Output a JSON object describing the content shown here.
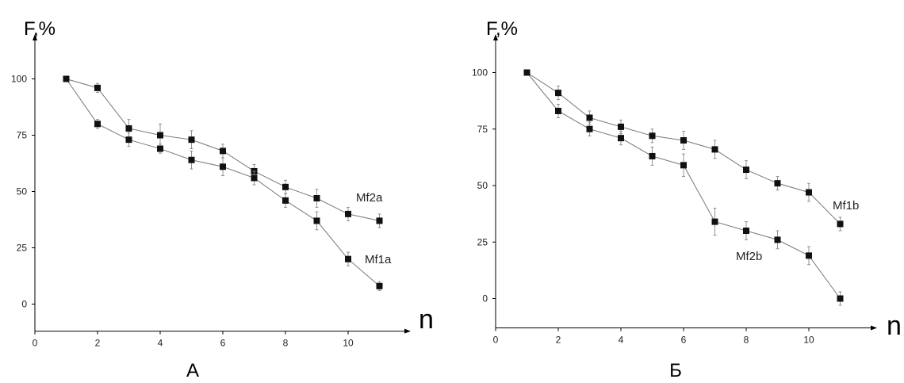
{
  "chart_data": [
    {
      "type": "line",
      "panel_label": "А",
      "ylabel": "F,%",
      "xlabel": "n",
      "xlim": [
        0,
        11.8
      ],
      "ylim": [
        -12,
        112
      ],
      "xticks": [
        0,
        2,
        4,
        6,
        8,
        10
      ],
      "yticks": [
        0,
        25,
        50,
        75,
        100
      ],
      "series": [
        {
          "name": "Mf2a",
          "x": [
            1,
            2,
            3,
            4,
            5,
            6,
            7,
            8,
            9,
            10,
            11
          ],
          "y": [
            100,
            96,
            78,
            75,
            73,
            68,
            59,
            52,
            47,
            40,
            37
          ],
          "err": [
            1,
            2,
            4,
            5,
            4,
            3,
            3,
            3,
            4,
            3,
            3
          ]
        },
        {
          "name": "Mf1a",
          "x": [
            1,
            2,
            3,
            4,
            5,
            6,
            7,
            8,
            9,
            10,
            11
          ],
          "y": [
            100,
            80,
            73,
            69,
            64,
            61,
            56,
            46,
            37,
            20,
            8
          ],
          "err": [
            1,
            2,
            3,
            2,
            4,
            4,
            3,
            3,
            4,
            3,
            2
          ]
        }
      ]
    },
    {
      "type": "line",
      "panel_label": "Б",
      "ylabel": "F,%",
      "xlabel": "n",
      "xlim": [
        0,
        12.2
      ],
      "ylim": [
        -13,
        113
      ],
      "xticks": [
        0,
        2,
        4,
        6,
        8,
        10
      ],
      "yticks": [
        0,
        25,
        50,
        75,
        100
      ],
      "series": [
        {
          "name": "Mf1b",
          "x": [
            1,
            2,
            3,
            4,
            5,
            6,
            7,
            8,
            9,
            10,
            11
          ],
          "y": [
            100,
            91,
            80,
            76,
            72,
            70,
            66,
            57,
            51,
            47,
            33
          ],
          "err": [
            1,
            3,
            3,
            3,
            3,
            4,
            4,
            4,
            3,
            4,
            3
          ]
        },
        {
          "name": "Mf2b",
          "x": [
            1,
            2,
            3,
            4,
            5,
            6,
            7,
            8,
            9,
            10,
            11
          ],
          "y": [
            100,
            83,
            75,
            71,
            63,
            59,
            34,
            30,
            26,
            19,
            0
          ],
          "err": [
            1,
            3,
            3,
            3,
            4,
            5,
            6,
            4,
            4,
            4,
            3
          ]
        }
      ]
    }
  ]
}
